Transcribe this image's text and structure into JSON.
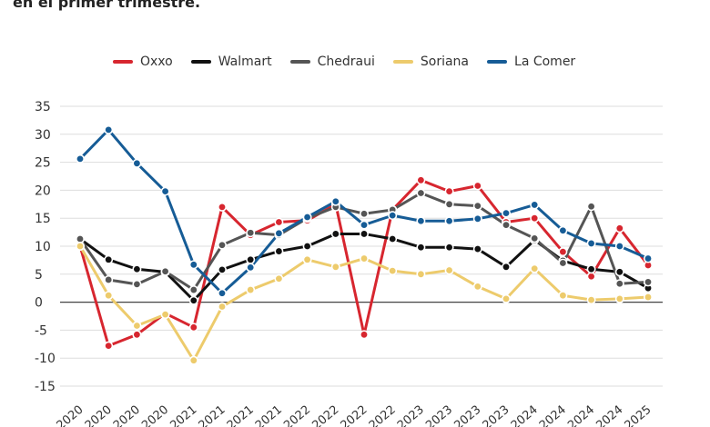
{
  "subtitle": "en el primer trimestre.",
  "chart_data": {
    "type": "line",
    "title": "",
    "xlabel": "",
    "ylabel": "",
    "ylim": [
      -15,
      35
    ],
    "yticks": [
      35,
      30,
      25,
      20,
      15,
      10,
      5,
      0,
      -5,
      -10,
      -15
    ],
    "grid": true,
    "legend_position": "top",
    "categories": [
      "2020",
      "2020",
      "2020",
      "2020",
      "2021",
      "2021",
      "2021",
      "2021",
      "2022",
      "2022",
      "2022",
      "2022",
      "2023",
      "2023",
      "2023",
      "2023",
      "2024",
      "2024",
      "2024",
      "2024",
      "2025"
    ],
    "series": [
      {
        "name": "Oxxo",
        "color": "#d7262f",
        "values": [
          10,
          -7.8,
          -5.8,
          -2,
          -4.5,
          17,
          12,
          14.3,
          14.6,
          17.5,
          -5.8,
          16.5,
          21.8,
          19.8,
          20.8,
          14.3,
          15,
          9,
          4.6,
          13.2,
          6.6
        ]
      },
      {
        "name": "Walmart",
        "color": "#111111",
        "values": [
          11.3,
          7.6,
          5.9,
          5.4,
          0.3,
          5.8,
          7.6,
          9.1,
          10,
          12.2,
          12.2,
          11.3,
          9.8,
          9.8,
          9.5,
          6.3,
          11.1,
          7.4,
          5.9,
          5.4,
          2.5
        ]
      },
      {
        "name": "Chedraui",
        "color": "#555555",
        "values": [
          11.3,
          4,
          3.2,
          5.5,
          2.2,
          10.2,
          12.4,
          12,
          15,
          17,
          15.8,
          16.5,
          19.5,
          17.5,
          17.2,
          13.8,
          11.4,
          7,
          17.1,
          3.3,
          3.6
        ]
      },
      {
        "name": "Soriana",
        "color": "#edcb6c",
        "values": [
          10,
          1.2,
          -4.2,
          -2.2,
          -10.4,
          -0.8,
          2.2,
          4.2,
          7.6,
          6.3,
          7.8,
          5.6,
          5,
          5.7,
          2.8,
          0.6,
          6,
          1.2,
          0.4,
          0.6,
          0.9
        ]
      },
      {
        "name": "La Comer",
        "color": "#165c96",
        "values": [
          25.6,
          30.8,
          24.8,
          19.8,
          6.7,
          1.6,
          6.2,
          12.3,
          15.2,
          18,
          13.8,
          15.5,
          14.5,
          14.5,
          14.9,
          15.9,
          17.4,
          12.8,
          10.5,
          10,
          7.8
        ]
      }
    ]
  }
}
